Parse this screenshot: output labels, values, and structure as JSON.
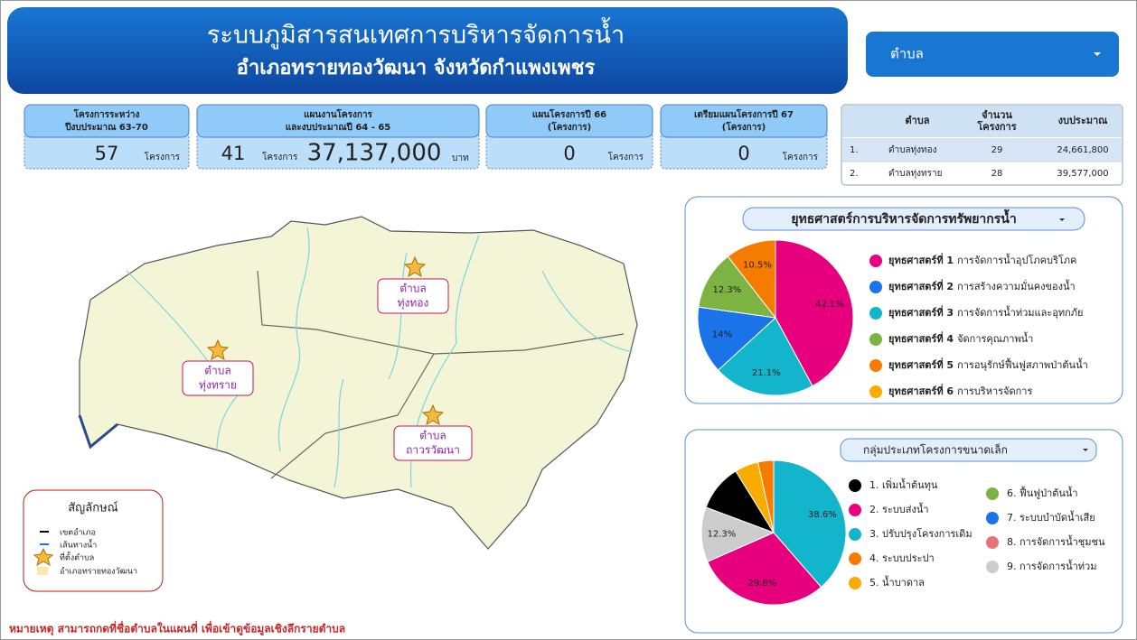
{
  "header": {
    "title": "ระบบภูมิสารสนเทศการบริหารจัดการน้ำ",
    "subtitle": "อำเภอทรายทองวัฒนา  จังหวัดกำแพงเพชร"
  },
  "filter": {
    "label": "ตำบล"
  },
  "kpis": [
    {
      "title": "โครงการระหว่าง",
      "title2": "ปีงบประมาณ 63-70",
      "value": "57",
      "unit": "โครงการ"
    },
    {
      "title": "แผนงานโครงการ",
      "title2": "และงบประมาณปี 64 - 65",
      "value": "41",
      "unit": "โครงการ",
      "amount": "37,137,000",
      "amount_unit": "บาท"
    },
    {
      "title": "แผนโครงการปี 66",
      "title2": "(โครงการ)",
      "value": "0",
      "unit": "โครงการ"
    },
    {
      "title": "เตรียมแผนโครงการปี 67",
      "title2": "(โครงการ)",
      "value": "0",
      "unit": "โครงการ"
    }
  ],
  "table": {
    "columns": [
      "ตำบล",
      "จำนวน",
      "งบประมาณ"
    ],
    "column2_line2": "โครงการ",
    "rows": [
      [
        "1.",
        "ตำบลทุ่งทอง",
        "29",
        "24,661,800"
      ],
      [
        "2.",
        "ตำบลทุ่งทราย",
        "28",
        "39,577,000"
      ]
    ]
  },
  "map": {
    "places": [
      "ตำบล",
      "ทุ่งทอง",
      "ตำบล",
      "ทุ่งทราย",
      "ตำบล",
      "ถาวรวัฒนา"
    ],
    "legend_title": "สัญลักษณ์",
    "legend_items": [
      "เขตอำเภอ",
      "เส้นทางน้ำ",
      "ที่ตั้งตำบล",
      "อำเภอทรายทองวัฒนา"
    ]
  },
  "strategy": {
    "dropdown": "ยุทธศาสตร์การบริหารจัดการทรัพยากรน้ำ",
    "slices": [
      {
        "value": 42.1,
        "label": "42.1%",
        "color": "#e6007e"
      },
      {
        "value": 21.1,
        "label": "21.1%",
        "color": "#12b5cb"
      },
      {
        "value": 14,
        "label": "14%",
        "color": "#1a73e8"
      },
      {
        "value": 12.3,
        "label": "12.3%",
        "color": "#7cb342"
      },
      {
        "value": 10.5,
        "label": "10.5%",
        "color": "#f57c00"
      }
    ],
    "legend": [
      {
        "bold": "ยุทธศาสตร์ที่ 1",
        "text": "การจัดการน้ำอุปโภคบริโภค",
        "color": "#e6007e"
      },
      {
        "bold": "ยุทธศาสตร์ที่ 2",
        "text": "การสร้างความมั่นคงของน้ำ",
        "color": "#1a73e8"
      },
      {
        "bold": "ยุทธศาสตร์ที่ 3",
        "text": "การจัดการน้ำท่วมและอุทกภัย",
        "color": "#12b5cb"
      },
      {
        "bold": "ยุทธศาสตร์ที่ 4",
        "text": "จัดการคุณภาพน้ำ",
        "color": "#7cb342"
      },
      {
        "bold": "ยุทธศาสตร์ที่ 5",
        "text": "การอนุรักษ์ฟื้นฟูสภาพป่าต้นน้ำ",
        "color": "#f57c00"
      },
      {
        "bold": "ยุทธศาสตร์ที่ 6",
        "text": "การบริหารจัดการ",
        "color": "#f9ab00"
      }
    ]
  },
  "groups": {
    "dropdown": "กลุ่มประเภทโครงการขนาดเล็ก",
    "slices": [
      {
        "value": 38.6,
        "label": "38.6%",
        "color": "#12b5cb"
      },
      {
        "value": 29.8,
        "label": "29.8%",
        "color": "#e6007e"
      },
      {
        "value": 12.3,
        "label": "12.3%",
        "color": "#cccccc"
      },
      {
        "value": 10.5,
        "color": "#000000"
      },
      {
        "value": 5.3,
        "color": "#f9ab00"
      },
      {
        "value": 3.5,
        "color": "#f57c00"
      }
    ],
    "legend": [
      {
        "text": "1. เพิ่มน้ำต้นทุน",
        "color": "#000000"
      },
      {
        "text": "2. ระบบส่งน้ำ",
        "color": "#e6007e"
      },
      {
        "text": "3. ปรับปรุงโครงการเดิม",
        "color": "#12b5cb"
      },
      {
        "text": "4. ระบบประปา",
        "color": "#f57c00"
      },
      {
        "text": "5. น้ำบาดาล",
        "color": "#f9ab00"
      },
      {
        "text": "6. ฟื้นฟูป่าต้นน้ำ",
        "color": "#7cb342"
      },
      {
        "text": "7. ระบบบำบัดน้ำเสีย",
        "color": "#1a73e8"
      },
      {
        "text": "8. การจัดการน้ำชุมชน",
        "color": "#e57373"
      },
      {
        "text": "9. การจัดการน้ำท่วม",
        "color": "#cccccc"
      }
    ]
  },
  "note": "หมายเหตุ  สามารถกดที่ชื่อตำบลในแผนที่ เพื่อเข้าดูข้อมูลเชิงลึกรายตำบล"
}
